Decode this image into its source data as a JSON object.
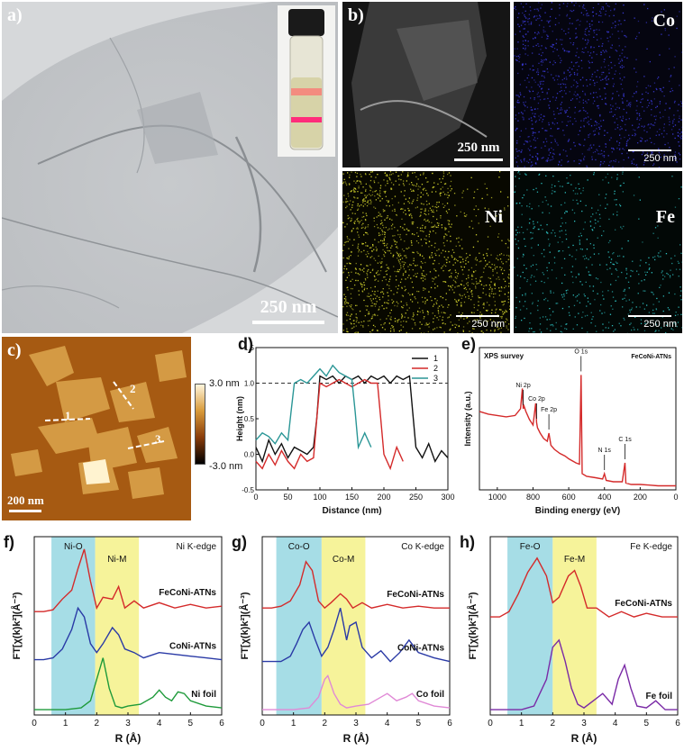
{
  "panel_a": {
    "label": "a)",
    "scale_bar": "250 nm",
    "colors": {
      "background": "#cfd1d3",
      "sheet": "#b7babd",
      "vial_laser": "#ff3b6b"
    }
  },
  "panel_b": {
    "label": "b)",
    "sem_scale": "250 nm",
    "maps": [
      {
        "element": "Co",
        "scale": "250 nm",
        "color": "#3a3ad8"
      },
      {
        "element": "Ni",
        "scale": "250 nm",
        "color": "#d8d82e"
      },
      {
        "element": "Fe",
        "scale": "250 nm",
        "color": "#2ec4c4"
      }
    ]
  },
  "panel_c": {
    "label": "c)",
    "scale_bar": "200 nm",
    "colorbar_max": "3.0 nm",
    "colorbar_min": "-3.0 nm",
    "line_labels": [
      "1",
      "2",
      "3"
    ]
  },
  "chart_data": [
    {
      "id": "d",
      "type": "line",
      "label": "d)",
      "xlabel": "Distance (nm)",
      "ylabel": "Height (nm)",
      "xlim": [
        0,
        300
      ],
      "ylim": [
        -0.5,
        1.5
      ],
      "xticks": [
        "0",
        "50",
        "100",
        "150",
        "200",
        "250",
        "300"
      ],
      "yticks": [
        "-0.5",
        "0.0",
        "0.5",
        "1.0",
        "1.5"
      ],
      "reference_line": 1.0,
      "series": [
        {
          "name": "1",
          "color": "#111111",
          "x": [
            0,
            10,
            20,
            30,
            40,
            50,
            60,
            70,
            80,
            90,
            95,
            100,
            110,
            120,
            130,
            140,
            150,
            160,
            170,
            180,
            190,
            200,
            210,
            220,
            230,
            240,
            245,
            250,
            260,
            270,
            280,
            290,
            300
          ],
          "y": [
            0.1,
            -0.1,
            0.2,
            0.0,
            0.15,
            -0.05,
            0.1,
            0.05,
            0.0,
            0.1,
            0.5,
            1.1,
            1.05,
            1.1,
            1.0,
            1.1,
            1.05,
            1.1,
            1.0,
            1.1,
            1.05,
            1.1,
            1.0,
            1.1,
            1.05,
            1.1,
            0.6,
            0.1,
            -0.05,
            0.15,
            -0.1,
            0.05,
            -0.05
          ]
        },
        {
          "name": "2",
          "color": "#d42a2a",
          "x": [
            0,
            10,
            20,
            30,
            40,
            50,
            60,
            70,
            80,
            90,
            95,
            100,
            110,
            120,
            130,
            140,
            150,
            160,
            170,
            180,
            190,
            195,
            200,
            210,
            220,
            230
          ],
          "y": [
            -0.1,
            -0.2,
            0.0,
            -0.15,
            0.05,
            -0.1,
            -0.2,
            0.0,
            -0.1,
            -0.05,
            0.5,
            1.0,
            0.95,
            1.0,
            1.05,
            1.0,
            0.95,
            1.0,
            1.05,
            1.0,
            1.0,
            0.5,
            0.0,
            -0.2,
            0.1,
            -0.1
          ]
        },
        {
          "name": "3",
          "color": "#2a9696",
          "x": [
            0,
            10,
            20,
            30,
            40,
            50,
            55,
            60,
            70,
            80,
            90,
            100,
            110,
            120,
            130,
            140,
            150,
            155,
            160,
            170,
            180
          ],
          "y": [
            0.2,
            0.3,
            0.25,
            0.15,
            0.3,
            0.2,
            0.6,
            1.0,
            1.05,
            1.0,
            1.1,
            1.2,
            1.1,
            1.25,
            1.15,
            1.1,
            1.05,
            0.6,
            0.1,
            0.3,
            0.1
          ]
        }
      ]
    },
    {
      "id": "e",
      "type": "line",
      "label": "e)",
      "title": "XPS survey",
      "sample": "FeCoNi-ATNs",
      "xlabel": "Binding energy (eV)",
      "ylabel": "Intensity (a.u.)",
      "xlim": [
        1100,
        0
      ],
      "xticks": [
        "1000",
        "800",
        "600",
        "400",
        "200",
        "0"
      ],
      "annotations": [
        {
          "text": "Ni 2p",
          "x": 855
        },
        {
          "text": "Co 2p",
          "x": 780
        },
        {
          "text": "Fe 2p",
          "x": 711
        },
        {
          "text": "O 1s",
          "x": 531
        },
        {
          "text": "N 1s",
          "x": 400
        },
        {
          "text": "C 1s",
          "x": 285
        }
      ],
      "series": [
        {
          "name": "FeCoNi-ATNs",
          "color": "#d42a2a",
          "x": [
            1100,
            1050,
            1000,
            950,
            900,
            870,
            860,
            855,
            850,
            840,
            820,
            800,
            785,
            780,
            775,
            760,
            740,
            720,
            711,
            700,
            680,
            650,
            620,
            600,
            560,
            540,
            531,
            525,
            500,
            450,
            410,
            400,
            390,
            350,
            300,
            285,
            280,
            250,
            200,
            150,
            100,
            50,
            0
          ],
          "y": [
            0.58,
            0.56,
            0.55,
            0.54,
            0.55,
            0.6,
            0.75,
            0.6,
            0.62,
            0.58,
            0.52,
            0.48,
            0.64,
            0.5,
            0.46,
            0.42,
            0.38,
            0.36,
            0.42,
            0.33,
            0.3,
            0.27,
            0.25,
            0.23,
            0.2,
            0.19,
            0.85,
            0.12,
            0.1,
            0.09,
            0.08,
            0.12,
            0.07,
            0.06,
            0.06,
            0.2,
            0.05,
            0.04,
            0.04,
            0.035,
            0.03,
            0.03,
            0.03
          ]
        }
      ]
    },
    {
      "id": "f",
      "type": "line",
      "label": "f)",
      "title": "Ni K-edge",
      "xlabel": "R (Å)",
      "ylabel": "FT[χ(k)k²](Å⁻³)",
      "xlim": [
        0,
        6
      ],
      "xticks": [
        "0",
        "1",
        "2",
        "3",
        "4",
        "5",
        "6"
      ],
      "bands": [
        {
          "label": "Ni-O",
          "from": 0.55,
          "to": 1.95,
          "color": "#a6dde6"
        },
        {
          "label": "Ni-M",
          "from": 1.95,
          "to": 3.35,
          "color": "#f6f39a"
        }
      ],
      "series": [
        {
          "name": "FeCoNi-ATNs",
          "color": "#d42a2a",
          "x": [
            0,
            0.3,
            0.6,
            0.9,
            1.2,
            1.4,
            1.6,
            1.8,
            2.0,
            2.2,
            2.5,
            2.7,
            2.9,
            3.2,
            3.5,
            4.0,
            4.5,
            5.0,
            5.5,
            6.0
          ],
          "y": [
            0.58,
            0.58,
            0.59,
            0.65,
            0.7,
            0.82,
            0.93,
            0.75,
            0.6,
            0.66,
            0.65,
            0.72,
            0.6,
            0.64,
            0.6,
            0.63,
            0.6,
            0.62,
            0.6,
            0.61
          ]
        },
        {
          "name": "CoNi-ATNs",
          "color": "#2a3aa6",
          "x": [
            0,
            0.3,
            0.6,
            0.9,
            1.2,
            1.4,
            1.6,
            1.8,
            2.0,
            2.2,
            2.5,
            2.7,
            2.9,
            3.2,
            3.5,
            4.0,
            4.5,
            5.0,
            5.5,
            6.0
          ],
          "y": [
            0.31,
            0.31,
            0.32,
            0.37,
            0.48,
            0.6,
            0.55,
            0.4,
            0.35,
            0.4,
            0.49,
            0.45,
            0.37,
            0.35,
            0.32,
            0.35,
            0.34,
            0.33,
            0.32,
            0.31
          ]
        },
        {
          "name": "Ni foil",
          "color": "#1e9a3a",
          "x": [
            0,
            0.5,
            1.0,
            1.5,
            1.8,
            2.0,
            2.2,
            2.4,
            2.6,
            2.8,
            3.0,
            3.4,
            3.8,
            4.0,
            4.2,
            4.4,
            4.6,
            4.8,
            5.0,
            5.5,
            6.0
          ],
          "y": [
            0.03,
            0.03,
            0.03,
            0.04,
            0.08,
            0.2,
            0.32,
            0.15,
            0.05,
            0.04,
            0.05,
            0.06,
            0.1,
            0.14,
            0.1,
            0.08,
            0.13,
            0.12,
            0.08,
            0.05,
            0.04
          ]
        }
      ]
    },
    {
      "id": "g",
      "type": "line",
      "label": "g)",
      "title": "Co K-edge",
      "xlabel": "R (Å)",
      "ylabel": "FT[χ(k)k²](Å⁻³)",
      "xlim": [
        0,
        6
      ],
      "xticks": [
        "0",
        "1",
        "2",
        "3",
        "4",
        "5",
        "6"
      ],
      "bands": [
        {
          "label": "Co-O",
          "from": 0.45,
          "to": 1.9,
          "color": "#a6dde6"
        },
        {
          "label": "Co-M",
          "from": 1.9,
          "to": 3.3,
          "color": "#f6f39a"
        }
      ],
      "series": [
        {
          "name": "FeCoNi-ATNs",
          "color": "#d42a2a",
          "x": [
            0,
            0.3,
            0.6,
            0.9,
            1.2,
            1.4,
            1.6,
            1.8,
            2.0,
            2.2,
            2.5,
            2.7,
            2.9,
            3.2,
            3.5,
            4.0,
            4.5,
            5.0,
            5.5,
            6.0
          ],
          "y": [
            0.6,
            0.6,
            0.61,
            0.64,
            0.73,
            0.86,
            0.81,
            0.64,
            0.6,
            0.63,
            0.68,
            0.65,
            0.6,
            0.63,
            0.6,
            0.62,
            0.6,
            0.61,
            0.6,
            0.6
          ]
        },
        {
          "name": "CoNi-ATNs",
          "color": "#2a3aa6",
          "x": [
            0,
            0.3,
            0.6,
            0.9,
            1.1,
            1.3,
            1.5,
            1.7,
            1.9,
            2.1,
            2.3,
            2.5,
            2.7,
            2.8,
            3.0,
            3.2,
            3.5,
            3.8,
            4.1,
            4.4,
            4.7,
            5.0,
            5.5,
            6.0
          ],
          "y": [
            0.3,
            0.3,
            0.3,
            0.33,
            0.4,
            0.48,
            0.52,
            0.42,
            0.33,
            0.38,
            0.48,
            0.6,
            0.42,
            0.5,
            0.52,
            0.38,
            0.32,
            0.36,
            0.3,
            0.35,
            0.42,
            0.35,
            0.32,
            0.3
          ]
        },
        {
          "name": "Co foil",
          "color": "#e089d6",
          "x": [
            0,
            0.5,
            1.0,
            1.5,
            1.8,
            2.0,
            2.1,
            2.3,
            2.5,
            2.7,
            3.0,
            3.4,
            3.8,
            4.0,
            4.3,
            4.6,
            4.8,
            5.0,
            5.5,
            6.0
          ],
          "y": [
            0.03,
            0.03,
            0.03,
            0.04,
            0.1,
            0.2,
            0.22,
            0.12,
            0.06,
            0.04,
            0.05,
            0.06,
            0.1,
            0.12,
            0.08,
            0.1,
            0.12,
            0.08,
            0.05,
            0.04
          ]
        }
      ]
    },
    {
      "id": "h",
      "type": "line",
      "label": "h)",
      "title": "Fe K-edge",
      "xlabel": "R (Å)",
      "ylabel": "FT[χ(k)k²](Å⁻³)",
      "xlim": [
        0,
        6
      ],
      "xticks": [
        "0",
        "1",
        "2",
        "3",
        "4",
        "5",
        "6"
      ],
      "bands": [
        {
          "label": "Fe-O",
          "from": 0.55,
          "to": 2.0,
          "color": "#a6dde6"
        },
        {
          "label": "Fe-M",
          "from": 2.0,
          "to": 3.4,
          "color": "#f6f39a"
        }
      ],
      "series": [
        {
          "name": "FeCoNi-ATNs",
          "color": "#d42a2a",
          "x": [
            0,
            0.3,
            0.6,
            0.9,
            1.2,
            1.5,
            1.8,
            2.0,
            2.2,
            2.5,
            2.7,
            2.9,
            3.1,
            3.4,
            3.8,
            4.2,
            4.6,
            5.0,
            5.5,
            6.0
          ],
          "y": [
            0.55,
            0.55,
            0.58,
            0.68,
            0.8,
            0.88,
            0.78,
            0.63,
            0.66,
            0.78,
            0.81,
            0.72,
            0.6,
            0.6,
            0.55,
            0.58,
            0.55,
            0.57,
            0.55,
            0.55
          ]
        },
        {
          "name": "Fe foil",
          "color": "#7a2aa6",
          "x": [
            0,
            0.5,
            1.0,
            1.4,
            1.8,
            2.0,
            2.2,
            2.4,
            2.6,
            2.8,
            3.0,
            3.3,
            3.6,
            3.9,
            4.1,
            4.3,
            4.5,
            4.7,
            5.0,
            5.3,
            5.6,
            6.0
          ],
          "y": [
            0.03,
            0.03,
            0.03,
            0.05,
            0.2,
            0.38,
            0.42,
            0.3,
            0.15,
            0.06,
            0.04,
            0.08,
            0.12,
            0.06,
            0.2,
            0.28,
            0.15,
            0.05,
            0.04,
            0.08,
            0.03,
            0.03
          ]
        }
      ]
    }
  ]
}
